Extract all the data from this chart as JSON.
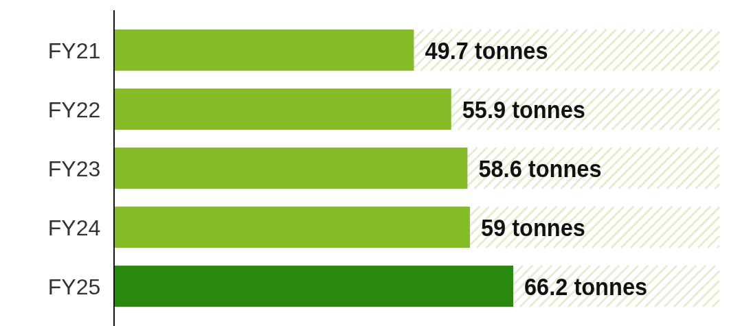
{
  "chart_data": {
    "type": "bar",
    "orientation": "horizontal",
    "categories": [
      "FY21",
      "FY22",
      "FY23",
      "FY24",
      "FY25"
    ],
    "values": [
      49.7,
      55.9,
      58.6,
      59,
      66.2
    ],
    "colors": [
      "#86bc25",
      "#86bc25",
      "#86bc25",
      "#86bc25",
      "#2a8a10"
    ],
    "value_labels": [
      "49.7 tonnes",
      "55.9 tonnes",
      "58.6 tonnes",
      "59 tonnes",
      "66.2 tonnes"
    ],
    "tick_labels": "y"
  }
}
